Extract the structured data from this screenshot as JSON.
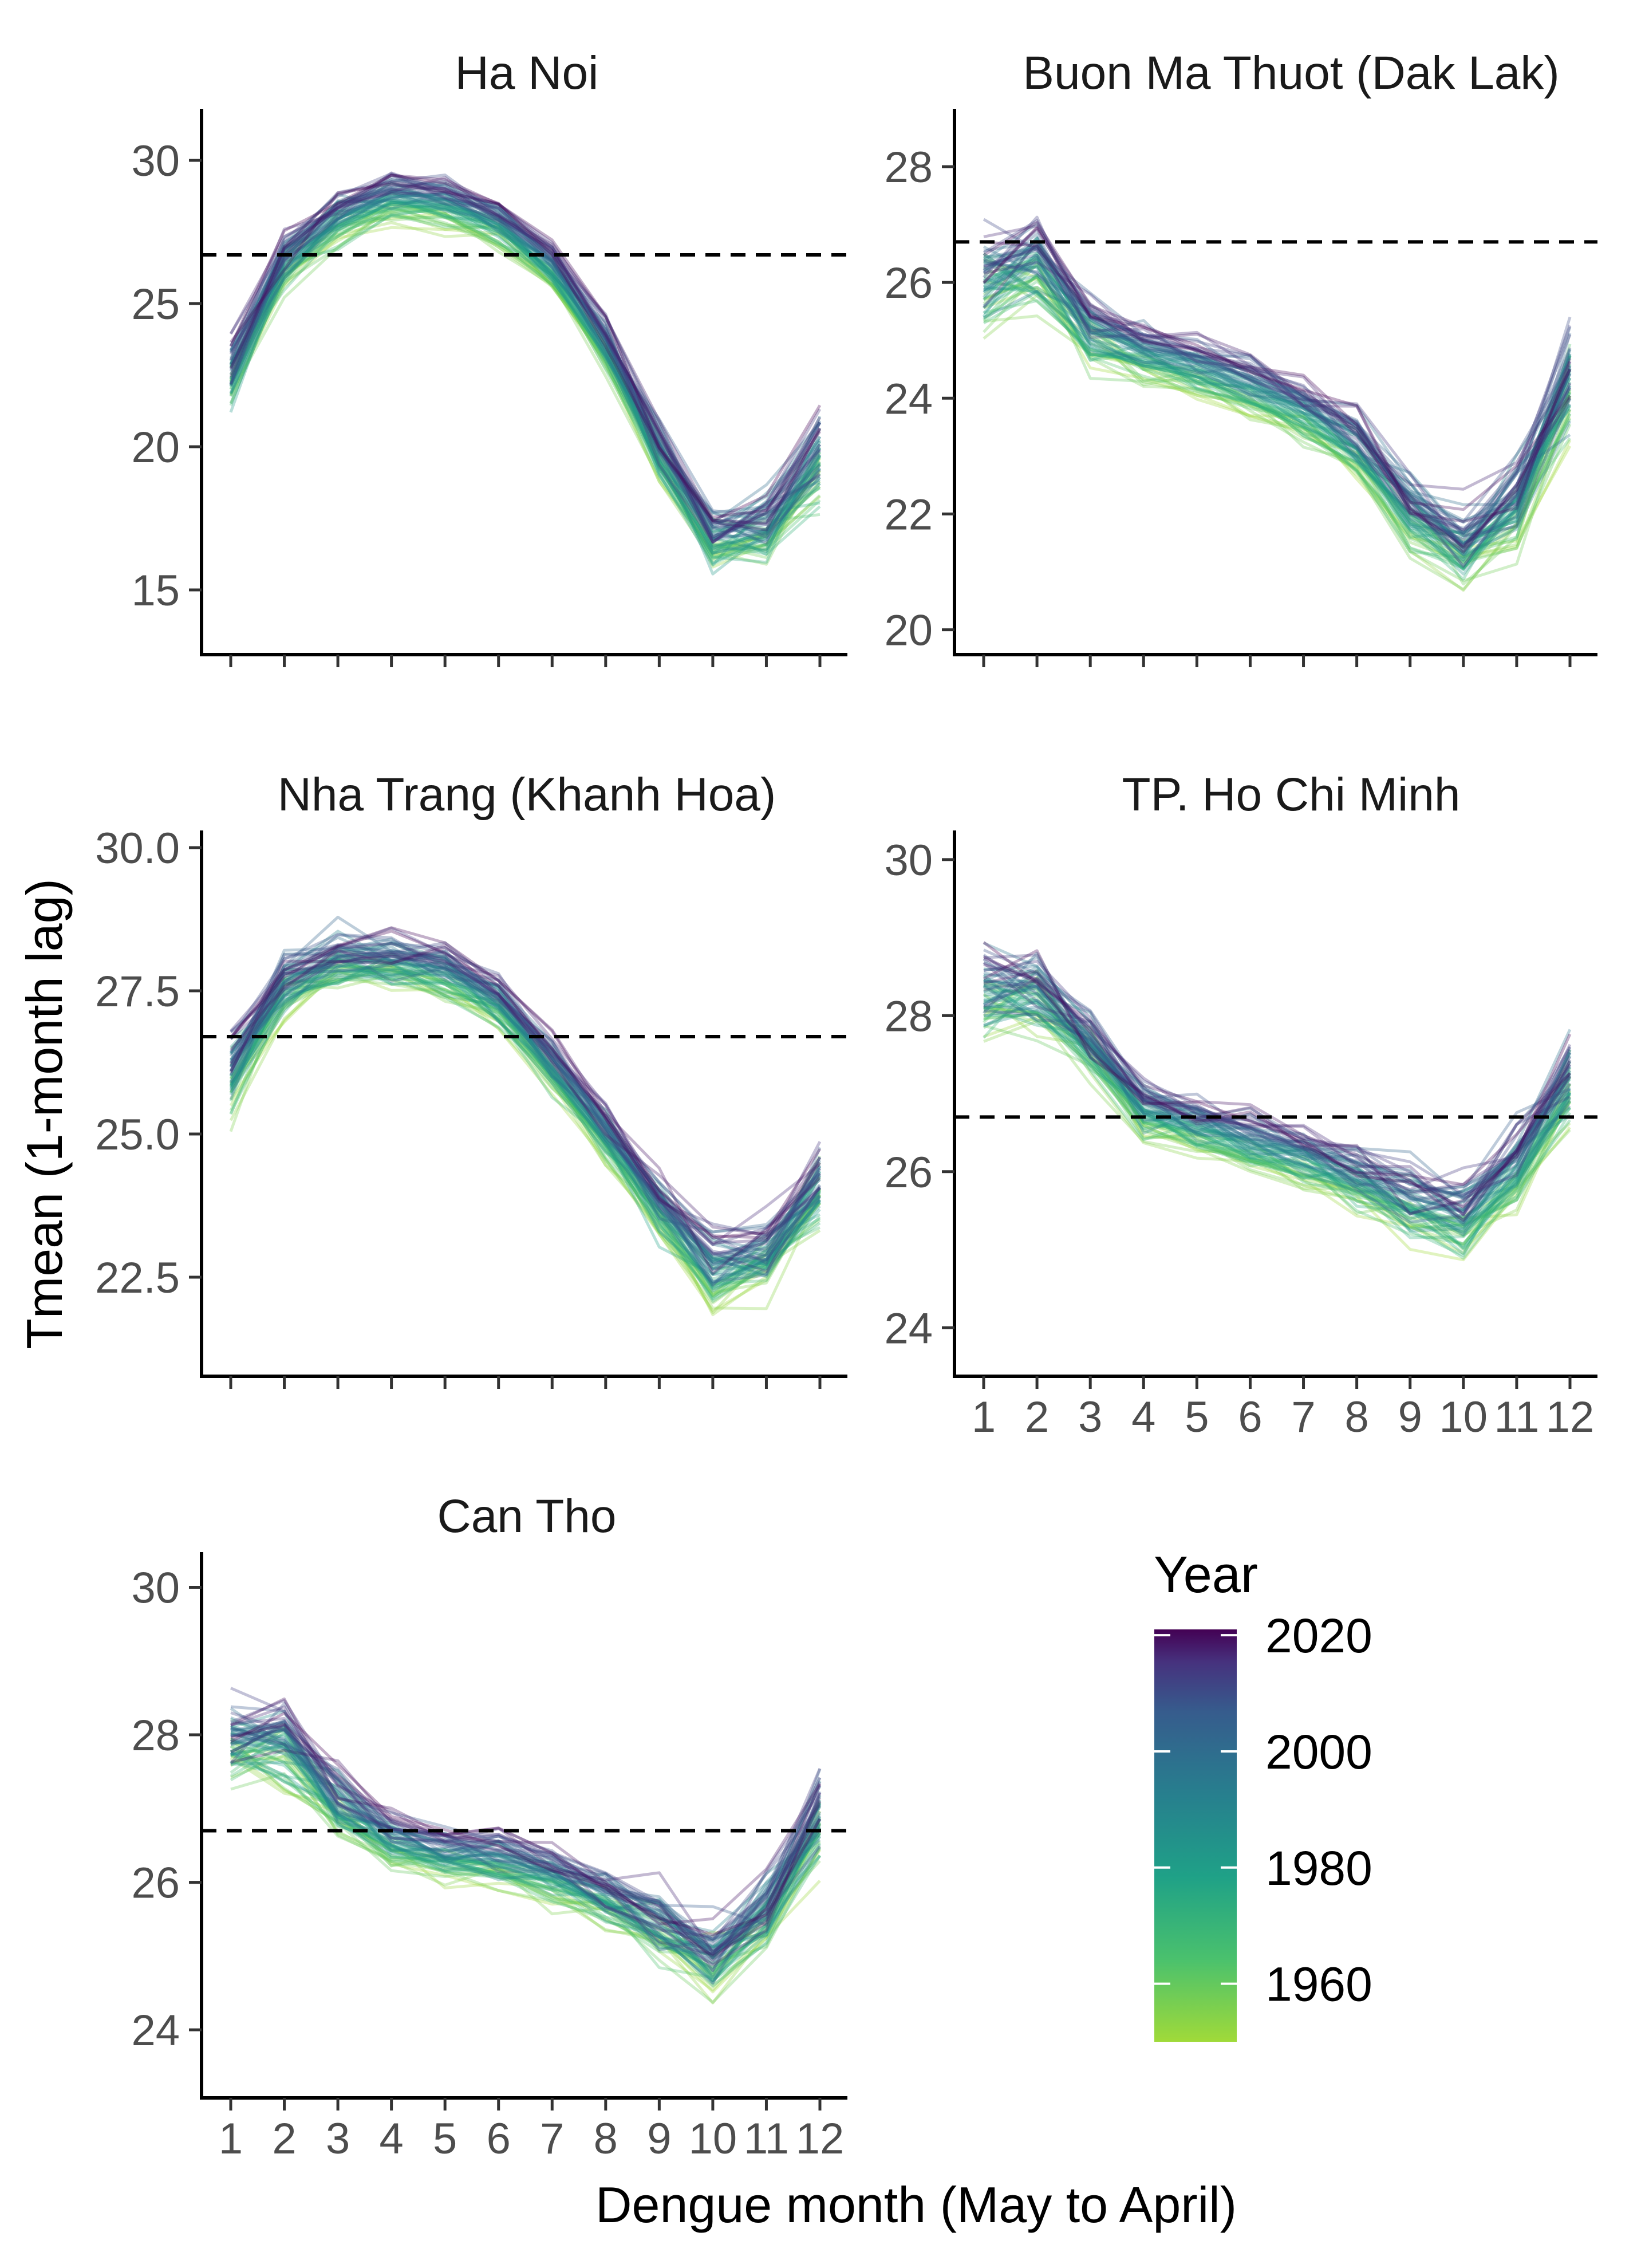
{
  "figure": {
    "xlabel": "Dengue month (May to April)",
    "ylabel": "Tmean (1-month lag)"
  },
  "legend": {
    "title": "Year",
    "labels": [
      "2020",
      "2000",
      "1980",
      "1960"
    ],
    "range": [
      1950,
      2021
    ],
    "ticks": [
      2020,
      2000,
      1980,
      1960
    ],
    "colormap": "viridis"
  },
  "chart_data": [
    {
      "type": "line",
      "title": "Ha Noi",
      "x": [
        1,
        2,
        3,
        4,
        5,
        6,
        7,
        8,
        9,
        10,
        11,
        12
      ],
      "x_ticks": [
        "1",
        "2",
        "3",
        "4",
        "5",
        "6",
        "7",
        "8",
        "9",
        "10",
        "11",
        "12"
      ],
      "show_x_tick_labels": false,
      "ylim": [
        12.8,
        31.6
      ],
      "y_ticks": [
        15,
        20,
        25,
        30
      ],
      "y_tick_labels": [
        "15",
        "20",
        "25",
        "30"
      ],
      "reference_line": 26.7,
      "mean_profile": [
        22.6,
        26.4,
        28.0,
        28.7,
        28.5,
        27.8,
        26.3,
        23.6,
        19.9,
        16.7,
        17.1,
        19.6
      ],
      "spread": [
        1.2,
        0.9,
        0.7,
        0.6,
        0.5,
        0.5,
        0.5,
        0.7,
        1.0,
        1.0,
        1.2,
        1.4
      ],
      "trend_per_decade": 0.18,
      "years": [
        1950,
        2021
      ]
    },
    {
      "type": "line",
      "title": "Buon Ma Thuot (Dak Lak)",
      "x": [
        1,
        2,
        3,
        4,
        5,
        6,
        7,
        8,
        9,
        10,
        11,
        12
      ],
      "x_ticks": [
        "1",
        "2",
        "3",
        "4",
        "5",
        "6",
        "7",
        "8",
        "9",
        "10",
        "11",
        "12"
      ],
      "show_x_tick_labels": false,
      "ylim": [
        19.6,
        28.9
      ],
      "y_ticks": [
        20,
        22,
        24,
        26,
        28
      ],
      "y_tick_labels": [
        "20",
        "22",
        "24",
        "26",
        "28"
      ],
      "reference_line": 26.7,
      "mean_profile": [
        26.0,
        26.3,
        25.2,
        24.8,
        24.5,
        24.2,
        23.8,
        23.2,
        22.1,
        21.4,
        22.2,
        24.4
      ],
      "spread": [
        0.9,
        0.7,
        0.5,
        0.35,
        0.3,
        0.3,
        0.3,
        0.4,
        0.6,
        0.7,
        0.7,
        1.0
      ],
      "trend_per_decade": 0.12,
      "years": [
        1950,
        2021
      ]
    },
    {
      "type": "line",
      "title": "Nha Trang (Khanh Hoa)",
      "x": [
        1,
        2,
        3,
        4,
        5,
        6,
        7,
        8,
        9,
        10,
        11,
        12
      ],
      "x_ticks": [
        "1",
        "2",
        "3",
        "4",
        "5",
        "6",
        "7",
        "8",
        "9",
        "10",
        "11",
        "12"
      ],
      "show_x_tick_labels": false,
      "ylim": [
        20.8,
        30.2
      ],
      "y_ticks": [
        22.5,
        25.0,
        27.5,
        30.0
      ],
      "y_tick_labels": [
        "22.5",
        "25.0",
        "27.5",
        "30.0"
      ],
      "reference_line": 26.7,
      "mean_profile": [
        26.1,
        27.6,
        28.0,
        28.0,
        27.8,
        27.3,
        26.2,
        25.0,
        23.7,
        22.7,
        22.9,
        24.1
      ],
      "spread": [
        0.7,
        0.5,
        0.5,
        0.45,
        0.4,
        0.35,
        0.35,
        0.4,
        0.5,
        0.6,
        0.6,
        0.7
      ],
      "trend_per_decade": 0.1,
      "years": [
        1950,
        2021
      ]
    },
    {
      "type": "line",
      "title": "TP. Ho Chi Minh",
      "x": [
        1,
        2,
        3,
        4,
        5,
        6,
        7,
        8,
        9,
        10,
        11,
        12
      ],
      "x_ticks": [
        "1",
        "2",
        "3",
        "4",
        "5",
        "6",
        "7",
        "8",
        "9",
        "10",
        "11",
        "12"
      ],
      "show_x_tick_labels": true,
      "ylim": [
        23.4,
        30.3
      ],
      "y_ticks": [
        24,
        26,
        28,
        30
      ],
      "y_tick_labels": [
        "24",
        "26",
        "28",
        "30"
      ],
      "reference_line": 26.7,
      "mean_profile": [
        28.3,
        28.3,
        27.6,
        26.8,
        26.6,
        26.4,
        26.2,
        25.9,
        25.6,
        25.4,
        26.0,
        27.2
      ],
      "spread": [
        0.5,
        0.5,
        0.4,
        0.25,
        0.25,
        0.25,
        0.25,
        0.35,
        0.4,
        0.45,
        0.45,
        0.55
      ],
      "trend_per_decade": 0.08,
      "years": [
        1950,
        2021
      ]
    },
    {
      "type": "line",
      "title": "Can Tho",
      "x": [
        1,
        2,
        3,
        4,
        5,
        6,
        7,
        8,
        9,
        10,
        11,
        12
      ],
      "x_ticks": [
        "1",
        "2",
        "3",
        "4",
        "5",
        "6",
        "7",
        "8",
        "9",
        "10",
        "11",
        "12"
      ],
      "show_x_tick_labels": true,
      "ylim": [
        23.1,
        30.4
      ],
      "y_ticks": [
        24,
        26,
        28,
        30
      ],
      "y_tick_labels": [
        "24",
        "26",
        "28",
        "30"
      ],
      "reference_line": 26.7,
      "mean_profile": [
        27.9,
        27.9,
        27.1,
        26.6,
        26.4,
        26.3,
        26.1,
        25.8,
        25.4,
        25.0,
        25.6,
        26.9
      ],
      "spread": [
        0.55,
        0.55,
        0.4,
        0.3,
        0.25,
        0.25,
        0.25,
        0.35,
        0.45,
        0.5,
        0.5,
        0.6
      ],
      "trend_per_decade": 0.08,
      "years": [
        1950,
        2021
      ]
    }
  ]
}
